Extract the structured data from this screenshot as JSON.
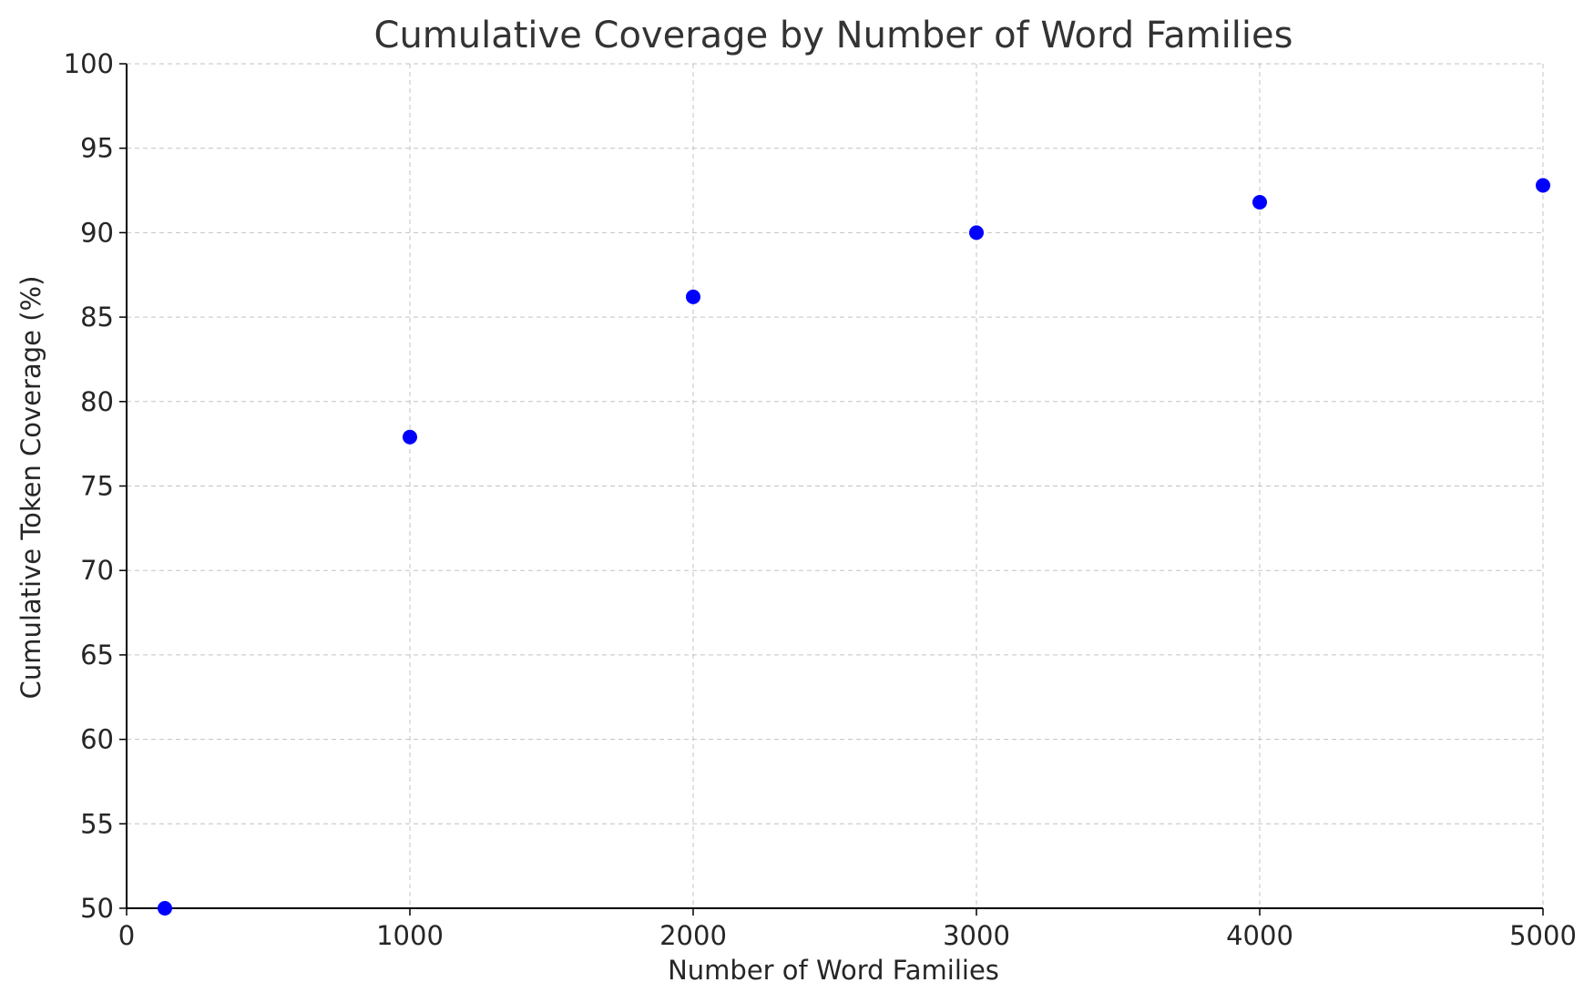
{
  "chart_data": {
    "type": "scatter",
    "title": "Cumulative Coverage by Number of Word Families",
    "xlabel": "Number of Word Families",
    "ylabel": "Cumulative Token Coverage (%)",
    "xlim": [
      0,
      5000
    ],
    "ylim": [
      50,
      100
    ],
    "xticks": [
      0,
      1000,
      2000,
      3000,
      4000,
      5000
    ],
    "yticks": [
      50,
      55,
      60,
      65,
      70,
      75,
      80,
      85,
      90,
      95,
      100
    ],
    "grid": true,
    "point_color": "#0000ff",
    "series": [
      {
        "x": [
          135,
          1000,
          2000,
          3000,
          4000,
          5000
        ],
        "y": [
          50.0,
          77.9,
          86.2,
          90.0,
          91.8,
          92.8
        ]
      }
    ]
  }
}
